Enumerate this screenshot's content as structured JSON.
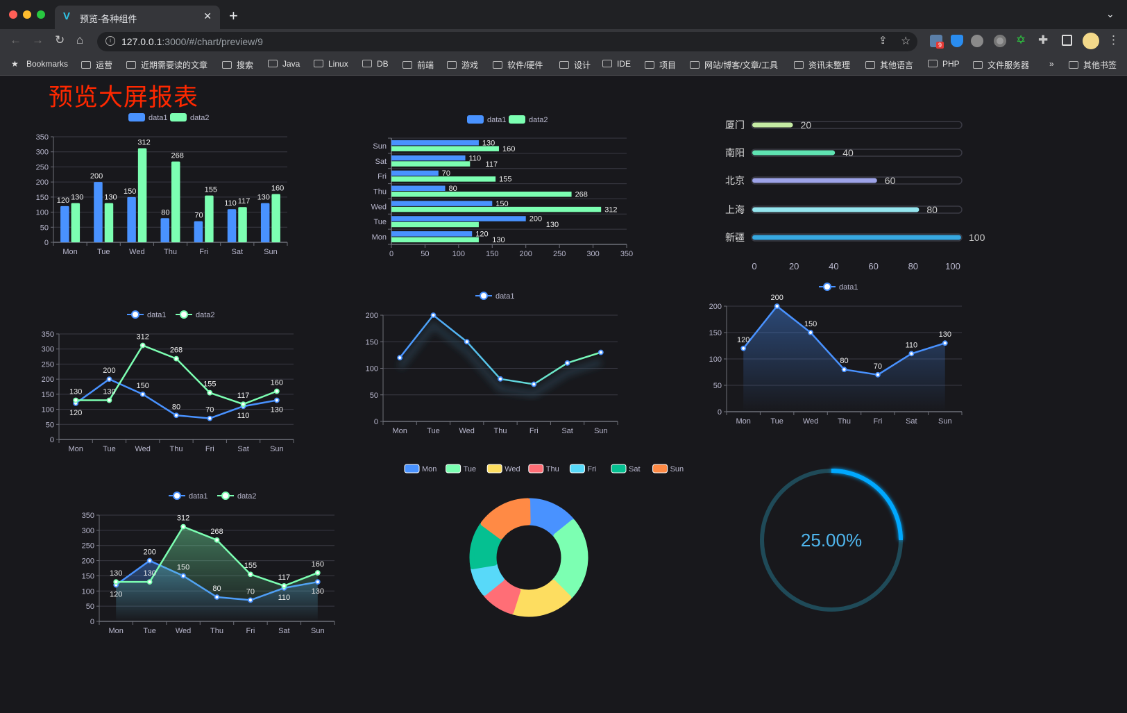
{
  "browser": {
    "tab_title": "预览-各种组件",
    "url_host": "127.0.0.1",
    "url_rest": ":3000/#/chart/preview/9",
    "extension_badge": "9",
    "bookmarks": [
      "Bookmarks",
      "运营",
      "近期需要读的文章",
      "搜索",
      "Java",
      "Linux",
      "DB",
      "前端",
      "游戏",
      "软件/硬件",
      "设计",
      "IDE",
      "项目",
      "网站/博客/文章/工具",
      "资讯未整理",
      "其他语言",
      "PHP",
      "文件服务器"
    ],
    "overflow": "»",
    "other_bookmarks": "其他书签"
  },
  "page": {
    "title": "预览大屏报表"
  },
  "colors": {
    "data1": "#4992ff",
    "data2": "#7cffb2",
    "title": "#ff2800",
    "gauge": "#00a8ff"
  },
  "chart_data": [
    {
      "type": "bar",
      "orientation": "vertical",
      "categories": [
        "Mon",
        "Tue",
        "Wed",
        "Thu",
        "Fri",
        "Sat",
        "Sun"
      ],
      "series": [
        {
          "name": "data1",
          "values": [
            120,
            200,
            150,
            80,
            70,
            110,
            130
          ]
        },
        {
          "name": "data2",
          "values": [
            130,
            130,
            312,
            268,
            155,
            117,
            160
          ]
        }
      ],
      "yticks": [
        "0",
        "50",
        "100",
        "150",
        "200",
        "250",
        "300",
        "350"
      ],
      "ylim": [
        0,
        350
      ],
      "legend": "top",
      "grid": true,
      "data_labels": true
    },
    {
      "type": "bar",
      "orientation": "horizontal",
      "categories": [
        "Mon",
        "Tue",
        "Wed",
        "Thu",
        "Fri",
        "Sat",
        "Sun"
      ],
      "series": [
        {
          "name": "data1",
          "values": [
            120,
            200,
            150,
            80,
            70,
            110,
            130
          ]
        },
        {
          "name": "data2",
          "values": [
            130,
            130,
            312,
            268,
            155,
            117,
            160
          ]
        }
      ],
      "xticks": [
        "0",
        "50",
        "100",
        "150",
        "200",
        "250",
        "300",
        "350"
      ],
      "xlim": [
        0,
        350
      ],
      "legend": "top",
      "grid": true,
      "data_labels": true
    },
    {
      "type": "bar",
      "orientation": "horizontal-progress",
      "categories": [
        "厦门",
        "南阳",
        "北京",
        "上海",
        "新疆"
      ],
      "values": [
        20,
        40,
        60,
        80,
        100
      ],
      "colors": [
        "#c6eba4",
        "#5fe3b2",
        "#9da3e8",
        "#94e5ee",
        "#37a8e0"
      ],
      "xticks": [
        "0",
        "20",
        "40",
        "60",
        "80",
        "100"
      ],
      "xlim": [
        0,
        100
      ],
      "data_labels": true
    },
    {
      "type": "line",
      "categories": [
        "Mon",
        "Tue",
        "Wed",
        "Thu",
        "Fri",
        "Sat",
        "Sun"
      ],
      "series": [
        {
          "name": "data1",
          "values": [
            120,
            200,
            150,
            80,
            70,
            110,
            130
          ]
        },
        {
          "name": "data2",
          "values": [
            130,
            130,
            312,
            268,
            155,
            117,
            160
          ]
        }
      ],
      "yticks": [
        "0",
        "50",
        "100",
        "150",
        "200",
        "250",
        "300",
        "350"
      ],
      "ylim": [
        0,
        350
      ],
      "legend": "top",
      "grid": true,
      "data_labels": true
    },
    {
      "type": "line",
      "categories": [
        "Mon",
        "Tue",
        "Wed",
        "Thu",
        "Fri",
        "Sat",
        "Sun"
      ],
      "series": [
        {
          "name": "data1",
          "values": [
            120,
            200,
            150,
            80,
            70,
            110,
            130
          ]
        }
      ],
      "yticks": [
        "0",
        "50",
        "100",
        "150",
        "200"
      ],
      "ylim": [
        0,
        200
      ],
      "legend": "top",
      "grid": true,
      "data_labels": false,
      "gradient_stroke": [
        "#4992ff",
        "#7cffb2"
      ],
      "shadow": true
    },
    {
      "type": "area",
      "categories": [
        "Mon",
        "Tue",
        "Wed",
        "Thu",
        "Fri",
        "Sat",
        "Sun"
      ],
      "series": [
        {
          "name": "data1",
          "values": [
            120,
            200,
            150,
            80,
            70,
            110,
            130
          ]
        }
      ],
      "yticks": [
        "0",
        "50",
        "100",
        "150",
        "200"
      ],
      "ylim": [
        0,
        200
      ],
      "legend": "top",
      "grid": true,
      "data_labels": true
    },
    {
      "type": "pie",
      "donut": true,
      "categories": [
        "Mon",
        "Tue",
        "Wed",
        "Thu",
        "Fri",
        "Sat",
        "Sun"
      ],
      "values": [
        120,
        200,
        150,
        80,
        70,
        110,
        130
      ],
      "colors": [
        "#4992ff",
        "#7cffb2",
        "#fddd60",
        "#ff6e76",
        "#58d9f9",
        "#05c091",
        "#ff8a45"
      ],
      "legend": "top"
    },
    {
      "type": "gauge",
      "value": 0.25,
      "label": "25.00%"
    },
    {
      "type": "area",
      "categories": [
        "Mon",
        "Tue",
        "Wed",
        "Thu",
        "Fri",
        "Sat",
        "Sun"
      ],
      "series": [
        {
          "name": "data1",
          "values": [
            120,
            200,
            150,
            80,
            70,
            110,
            130
          ]
        },
        {
          "name": "data2",
          "values": [
            130,
            130,
            312,
            268,
            155,
            117,
            160
          ]
        }
      ],
      "yticks": [
        "0",
        "50",
        "100",
        "150",
        "200",
        "250",
        "300",
        "350"
      ],
      "ylim": [
        0,
        350
      ],
      "legend": "top",
      "grid": true,
      "data_labels": true
    }
  ]
}
